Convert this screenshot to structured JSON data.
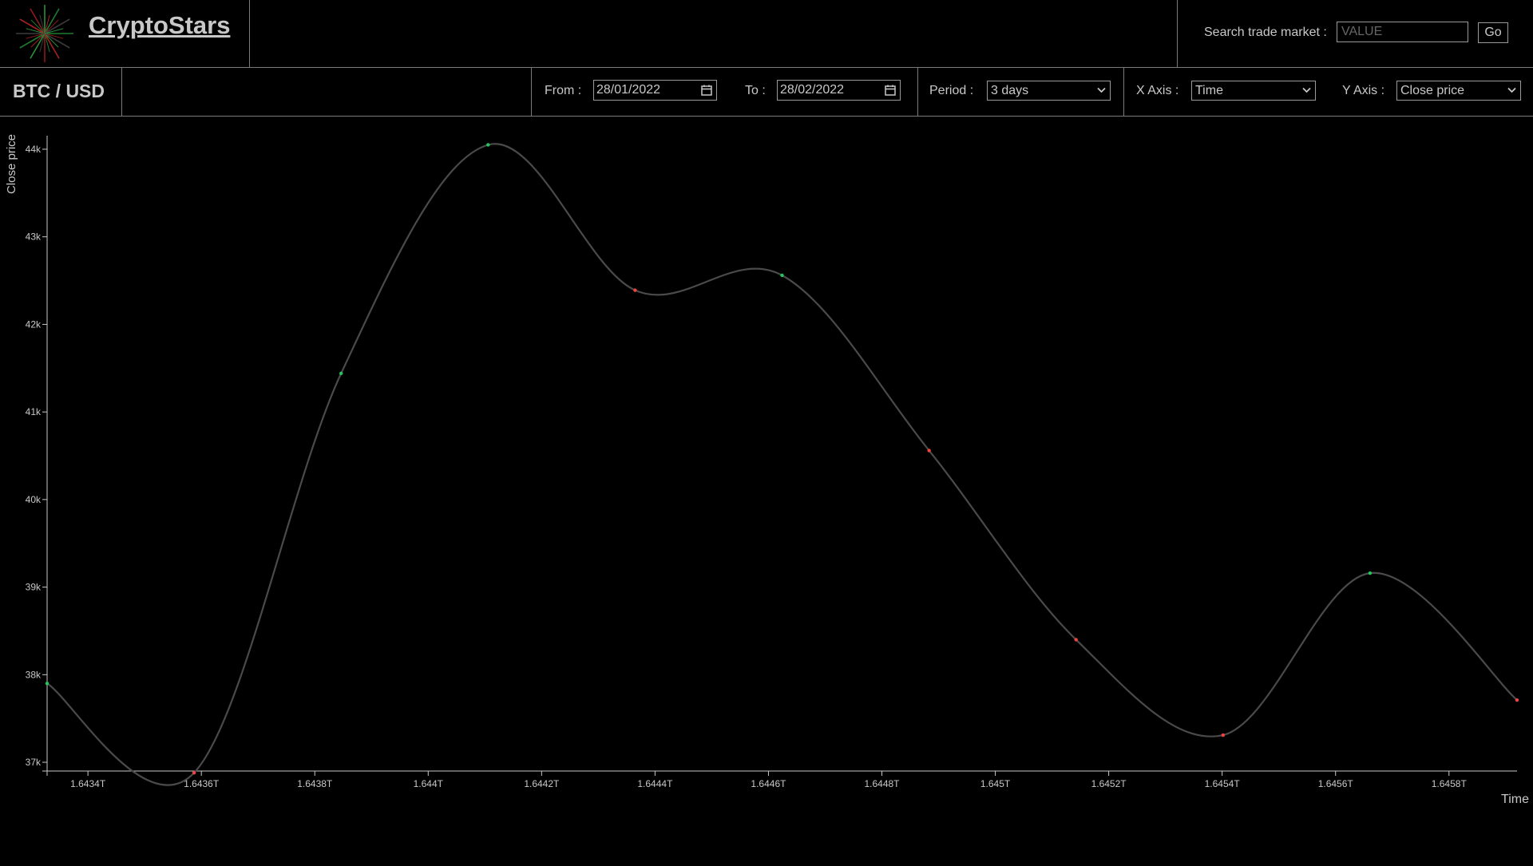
{
  "header": {
    "brand_name": "CryptoStars",
    "search_label": "Search trade market :",
    "search_placeholder": "VALUE",
    "go_label": "Go"
  },
  "controls": {
    "pair": "BTC / USD",
    "from_label": "From :",
    "from_value": "28/01/2022",
    "to_label": "To :",
    "to_value": "28/02/2022",
    "period_label": "Period :",
    "period_value": "3 days",
    "xaxis_label": "X Axis :",
    "xaxis_value": "Time",
    "yaxis_label": "Y Axis :",
    "yaxis_value": "Close price"
  },
  "icons": {
    "from_calendar": "calendar-icon",
    "to_calendar": "calendar-icon",
    "period_chevron": "chevron-down-icon",
    "xaxis_chevron": "chevron-down-icon",
    "yaxis_chevron": "chevron-down-icon",
    "logo": "starburst-logo-icon"
  },
  "colors": {
    "background": "#000000",
    "line": "#4a4a4a",
    "up_point": "#22c55e",
    "down_point": "#ef4444",
    "text": "#c8c8c8"
  },
  "chart_data": {
    "type": "line",
    "xlabel": "Time",
    "ylabel": "Close price",
    "xlim": [
      1643328000000,
      1645920000000
    ],
    "ylim": [
      36900,
      44100
    ],
    "x_ticks": [
      1643400000000,
      1643600000000,
      1643800000000,
      1644000000000,
      1644200000000,
      1644400000000,
      1644600000000,
      1644800000000,
      1645000000000,
      1645200000000,
      1645400000000,
      1645600000000,
      1645800000000
    ],
    "x_tick_labels": [
      "1.6434T",
      "1.6436T",
      "1.6438T",
      "1.644T",
      "1.6442T",
      "1.6444T",
      "1.6446T",
      "1.6448T",
      "1.645T",
      "1.6452T",
      "1.6454T",
      "1.6456T",
      "1.6458T"
    ],
    "y_ticks": [
      37000,
      38000,
      39000,
      40000,
      41000,
      42000,
      43000,
      44000
    ],
    "y_tick_labels": [
      "37k",
      "38k",
      "39k",
      "40k",
      "41k",
      "42k",
      "43k",
      "44k"
    ],
    "series": [
      {
        "x": [
          1643328000000,
          1643587200000,
          1643846400000,
          1644105600000,
          1644364800000,
          1644624000000,
          1644883200000,
          1645142400000,
          1645401600000,
          1645660800000,
          1645920000000
        ],
        "y": [
          37900,
          36880,
          41440,
          44050,
          42390,
          42560,
          40560,
          38400,
          37310,
          39160,
          37710
        ],
        "point_direction": [
          "up",
          "down",
          "up",
          "up",
          "down",
          "up",
          "down",
          "down",
          "down",
          "up",
          "down"
        ]
      }
    ],
    "grid": false,
    "legend": "none"
  }
}
